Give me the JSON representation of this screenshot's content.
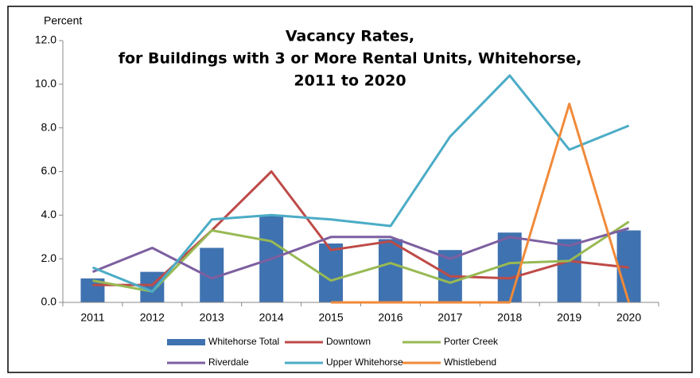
{
  "chart_data": {
    "type": "combo",
    "title": [
      "Vacancy Rates,",
      "for Buildings with 3 or More Rental Units, Whitehorse,",
      "2011 to 2020"
    ],
    "y_axis_label": "Percent",
    "categories": [
      "2011",
      "2012",
      "2013",
      "2014",
      "2015",
      "2016",
      "2017",
      "2018",
      "2019",
      "2020"
    ],
    "series": [
      {
        "name": "Whitehorse Total",
        "type": "bar",
        "color": "#3f72b0",
        "values": [
          1.1,
          1.4,
          2.5,
          4.0,
          2.7,
          2.9,
          2.4,
          3.2,
          2.9,
          3.3
        ]
      },
      {
        "name": "Downtown",
        "type": "line",
        "color": "#be4b48",
        "values": [
          0.8,
          0.8,
          3.3,
          6.0,
          2.4,
          2.8,
          1.2,
          1.1,
          1.9,
          1.6
        ]
      },
      {
        "name": "Porter Creek",
        "type": "line",
        "color": "#98b954",
        "values": [
          1.0,
          0.5,
          3.3,
          2.8,
          1.0,
          1.8,
          0.9,
          1.8,
          1.9,
          3.7
        ]
      },
      {
        "name": "Riverdale",
        "type": "line",
        "color": "#7d5fa0",
        "values": [
          1.4,
          2.5,
          1.1,
          2.0,
          3.0,
          3.0,
          2.0,
          3.0,
          2.6,
          3.4
        ]
      },
      {
        "name": "Upper Whitehorse",
        "type": "line",
        "color": "#4bacc6",
        "values": [
          1.6,
          0.5,
          3.8,
          4.0,
          3.8,
          3.5,
          7.6,
          10.4,
          7.0,
          8.1
        ]
      },
      {
        "name": "Whistlebend",
        "type": "line",
        "color": "#f08a3a",
        "values": [
          null,
          null,
          null,
          null,
          0,
          0,
          0,
          0,
          9.1,
          0
        ]
      }
    ],
    "ylim": [
      0,
      12
    ],
    "yticks": [
      {
        "value": 0,
        "label": "0.0"
      },
      {
        "value": 2,
        "label": "2.0"
      },
      {
        "value": 4,
        "label": "4.0"
      },
      {
        "value": 6,
        "label": "6.0"
      },
      {
        "value": 8,
        "label": "8.0"
      },
      {
        "value": 10,
        "label": "10.0"
      },
      {
        "value": 12,
        "label": "12.0"
      }
    ],
    "grid": false,
    "legend": "bottom"
  }
}
